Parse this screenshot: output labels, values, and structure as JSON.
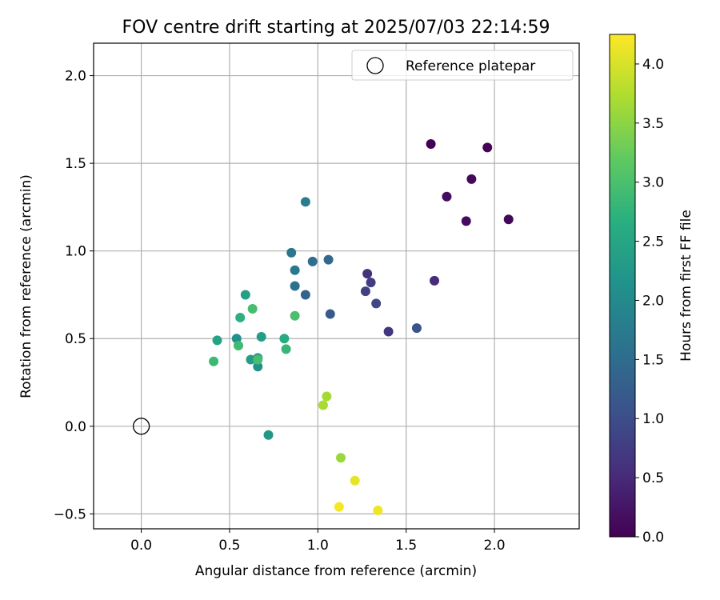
{
  "chart_data": {
    "type": "scatter",
    "title": "FOV centre drift starting at 2025/07/03 22:14:59",
    "xlabel": "Angular distance from reference (arcmin)",
    "ylabel": "Rotation from reference (arcmin)",
    "xlim": [
      -0.27,
      2.48
    ],
    "ylim": [
      -0.585,
      2.185
    ],
    "xticks": [
      0.0,
      0.5,
      1.0,
      1.5,
      2.0
    ],
    "xtick_labels": [
      "0.0",
      "0.5",
      "1.0",
      "1.5",
      "2.0"
    ],
    "yticks": [
      -0.5,
      0.0,
      0.5,
      1.0,
      1.5,
      2.0
    ],
    "ytick_labels": [
      "−0.5",
      "0.0",
      "0.5",
      "1.0",
      "1.5",
      "2.0"
    ],
    "grid": true,
    "legend": {
      "position": "upper right",
      "entries": [
        "Reference platepar"
      ]
    },
    "reference_point": {
      "label": "Reference platepar",
      "x": 0.0,
      "y": 0.0,
      "marker": "open-circle"
    },
    "colorbar": {
      "label": "Hours from first FF file",
      "colormap": "viridis",
      "range": [
        0.0,
        4.25
      ],
      "ticks": [
        0.0,
        0.5,
        1.0,
        1.5,
        2.0,
        2.5,
        3.0,
        3.5,
        4.0
      ],
      "tick_labels": [
        "0.0",
        "0.5",
        "1.0",
        "1.5",
        "2.0",
        "2.5",
        "3.0",
        "3.5",
        "4.0"
      ]
    },
    "points": [
      {
        "x": 1.64,
        "y": 1.61,
        "hours": 0.0
      },
      {
        "x": 1.96,
        "y": 1.59,
        "hours": 0.05
      },
      {
        "x": 1.87,
        "y": 1.41,
        "hours": 0.1
      },
      {
        "x": 1.73,
        "y": 1.31,
        "hours": 0.15
      },
      {
        "x": 2.08,
        "y": 1.18,
        "hours": 0.08
      },
      {
        "x": 1.84,
        "y": 1.17,
        "hours": 0.12
      },
      {
        "x": 1.28,
        "y": 0.87,
        "hours": 0.6
      },
      {
        "x": 1.66,
        "y": 0.83,
        "hours": 0.5
      },
      {
        "x": 1.3,
        "y": 0.82,
        "hours": 0.75
      },
      {
        "x": 1.27,
        "y": 0.77,
        "hours": 0.8
      },
      {
        "x": 1.33,
        "y": 0.7,
        "hours": 0.9
      },
      {
        "x": 1.4,
        "y": 0.54,
        "hours": 0.65
      },
      {
        "x": 1.56,
        "y": 0.56,
        "hours": 1.1
      },
      {
        "x": 1.07,
        "y": 0.64,
        "hours": 1.2
      },
      {
        "x": 1.06,
        "y": 0.95,
        "hours": 1.45
      },
      {
        "x": 0.97,
        "y": 0.94,
        "hours": 1.55
      },
      {
        "x": 0.85,
        "y": 0.99,
        "hours": 1.65
      },
      {
        "x": 0.87,
        "y": 0.89,
        "hours": 1.7
      },
      {
        "x": 0.93,
        "y": 0.75,
        "hours": 1.35
      },
      {
        "x": 0.87,
        "y": 0.8,
        "hours": 1.6
      },
      {
        "x": 0.93,
        "y": 1.28,
        "hours": 1.75
      },
      {
        "x": 0.59,
        "y": 0.75,
        "hours": 2.4
      },
      {
        "x": 0.68,
        "y": 0.51,
        "hours": 2.35
      },
      {
        "x": 0.54,
        "y": 0.5,
        "hours": 2.1
      },
      {
        "x": 0.62,
        "y": 0.38,
        "hours": 2.3
      },
      {
        "x": 0.66,
        "y": 0.39,
        "hours": 2.2
      },
      {
        "x": 0.66,
        "y": 0.34,
        "hours": 2.15
      },
      {
        "x": 0.72,
        "y": -0.05,
        "hours": 2.25
      },
      {
        "x": 0.43,
        "y": 0.49,
        "hours": 2.45
      },
      {
        "x": 0.56,
        "y": 0.62,
        "hours": 2.7
      },
      {
        "x": 0.63,
        "y": 0.67,
        "hours": 2.95
      },
      {
        "x": 0.41,
        "y": 0.37,
        "hours": 2.85
      },
      {
        "x": 0.55,
        "y": 0.46,
        "hours": 2.9
      },
      {
        "x": 0.66,
        "y": 0.38,
        "hours": 2.95
      },
      {
        "x": 0.81,
        "y": 0.5,
        "hours": 2.6
      },
      {
        "x": 0.82,
        "y": 0.44,
        "hours": 2.8
      },
      {
        "x": 0.87,
        "y": 0.63,
        "hours": 3.0
      },
      {
        "x": 1.05,
        "y": 0.17,
        "hours": 3.65
      },
      {
        "x": 1.03,
        "y": 0.12,
        "hours": 3.7
      },
      {
        "x": 1.13,
        "y": -0.18,
        "hours": 3.6
      },
      {
        "x": 1.21,
        "y": -0.31,
        "hours": 4.1
      },
      {
        "x": 1.12,
        "y": -0.46,
        "hours": 4.2
      },
      {
        "x": 1.34,
        "y": -0.48,
        "hours": 4.15
      }
    ]
  }
}
